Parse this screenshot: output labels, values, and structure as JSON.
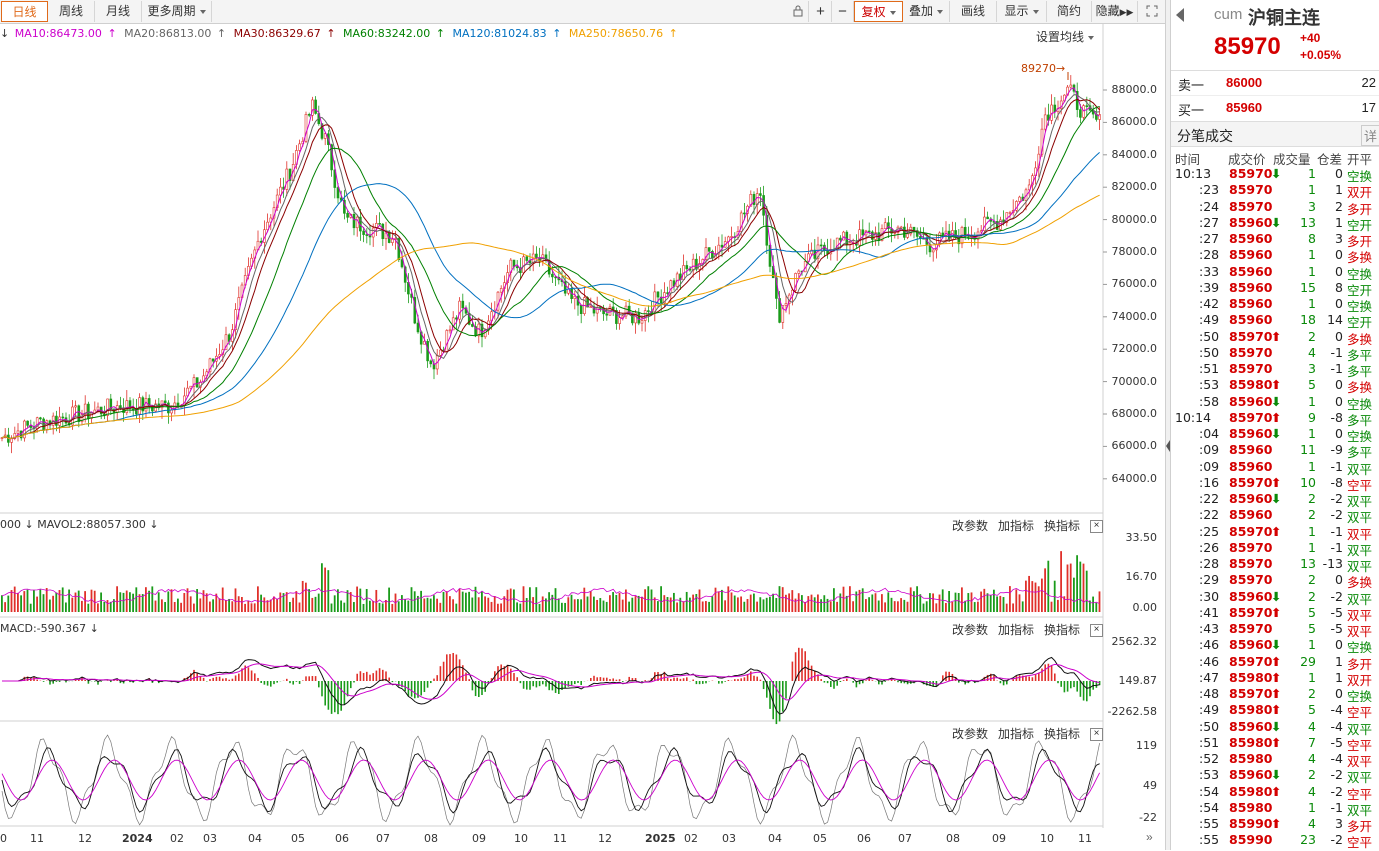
{
  "toolbar": {
    "tabs": [
      "日线",
      "周线",
      "月线",
      "更多周期"
    ],
    "actions": [
      "复权",
      "叠加",
      "画线",
      "显示",
      "简约",
      "隐藏"
    ],
    "ma_settings": "设置均线"
  },
  "ma_legend": [
    {
      "label": "MA10:86473.00",
      "color": "#cc00cc",
      "arrow": "↑"
    },
    {
      "label": "MA20:86813.00",
      "color": "#666666",
      "arrow": "↑"
    },
    {
      "label": "MA30:86329.67",
      "color": "#8b0000",
      "arrow": "↑"
    },
    {
      "label": "MA60:83242.00",
      "color": "#008000",
      "arrow": "↑"
    },
    {
      "label": "MA120:81024.83",
      "color": "#0070c0",
      "arrow": "↑"
    },
    {
      "label": "MA250:78650.76",
      "color": "#f0a000",
      "arrow": "↑"
    }
  ],
  "price_axis": [
    "88000.0",
    "86000.0",
    "84000.0",
    "82000.0",
    "80000.0",
    "78000.0",
    "76000.0",
    "74000.0",
    "72000.0",
    "70000.0",
    "68000.0",
    "66000.0",
    "64000.0"
  ],
  "peak_label": "89270",
  "volume_pane": {
    "title": "000 ↓ MAVOL2:88057.300 ↓",
    "axis": [
      "33.50",
      "16.70",
      "0.00"
    ]
  },
  "macd_pane": {
    "title": "MACD:-590.367 ↓",
    "axis": [
      "2562.32",
      "149.87",
      "-2262.58"
    ]
  },
  "kdj_pane": {
    "axis": [
      "119",
      "49",
      "-22"
    ]
  },
  "pane_buttons": [
    "改参数",
    "加指标",
    "换指标"
  ],
  "date_axis": [
    "0",
    "11",
    "12",
    "2024",
    "02",
    "03",
    "04",
    "05",
    "06",
    "07",
    "08",
    "09",
    "10",
    "11",
    "12",
    "2025",
    "02",
    "03",
    "04",
    "05",
    "06",
    "07",
    "08",
    "09",
    "10",
    "11"
  ],
  "quote": {
    "prefix": "cum",
    "name": "沪铜主连",
    "price": "85970",
    "change": "+40",
    "change_pct": "+0.05%",
    "ask_label": "卖一",
    "ask_price": "86000",
    "ask_vol": "22",
    "bid_label": "买一",
    "bid_price": "85960",
    "bid_vol": "17"
  },
  "trades_section": {
    "title": "分笔成交",
    "detail": "详",
    "headers": [
      "时间",
      "成交价",
      "成交量",
      "仓差",
      "开平"
    ]
  },
  "trades": [
    {
      "t": "10:13",
      "p": "85970",
      "dir": "down",
      "v": "1",
      "d": "0",
      "k": "空换",
      "kc": "green"
    },
    {
      "t": ":23",
      "p": "85970",
      "dir": "",
      "v": "1",
      "d": "1",
      "k": "双开",
      "kc": "red"
    },
    {
      "t": ":24",
      "p": "85970",
      "dir": "",
      "v": "3",
      "d": "2",
      "k": "多开",
      "kc": "red"
    },
    {
      "t": ":27",
      "p": "85960",
      "dir": "down",
      "v": "13",
      "d": "1",
      "k": "空开",
      "kc": "green"
    },
    {
      "t": ":27",
      "p": "85960",
      "dir": "",
      "v": "8",
      "d": "3",
      "k": "多开",
      "kc": "red"
    },
    {
      "t": ":28",
      "p": "85960",
      "dir": "",
      "v": "1",
      "d": "0",
      "k": "多换",
      "kc": "red"
    },
    {
      "t": ":33",
      "p": "85960",
      "dir": "",
      "v": "1",
      "d": "0",
      "k": "空换",
      "kc": "green"
    },
    {
      "t": ":39",
      "p": "85960",
      "dir": "",
      "v": "15",
      "d": "8",
      "k": "空开",
      "kc": "green"
    },
    {
      "t": ":42",
      "p": "85960",
      "dir": "",
      "v": "1",
      "d": "0",
      "k": "空换",
      "kc": "green"
    },
    {
      "t": ":49",
      "p": "85960",
      "dir": "",
      "v": "18",
      "d": "14",
      "k": "空开",
      "kc": "green"
    },
    {
      "t": ":50",
      "p": "85970",
      "dir": "up",
      "v": "2",
      "d": "0",
      "k": "多换",
      "kc": "red"
    },
    {
      "t": ":50",
      "p": "85970",
      "dir": "",
      "v": "4",
      "d": "-1",
      "k": "多平",
      "kc": "green"
    },
    {
      "t": ":51",
      "p": "85970",
      "dir": "",
      "v": "3",
      "d": "-1",
      "k": "多平",
      "kc": "green"
    },
    {
      "t": ":53",
      "p": "85980",
      "dir": "up",
      "v": "5",
      "d": "0",
      "k": "多换",
      "kc": "red"
    },
    {
      "t": ":58",
      "p": "85960",
      "dir": "down",
      "v": "1",
      "d": "0",
      "k": "空换",
      "kc": "green"
    },
    {
      "t": "10:14",
      "p": "85970",
      "dir": "up",
      "v": "9",
      "d": "-8",
      "k": "多平",
      "kc": "green"
    },
    {
      "t": ":04",
      "p": "85960",
      "dir": "down",
      "v": "1",
      "d": "0",
      "k": "空换",
      "kc": "green"
    },
    {
      "t": ":09",
      "p": "85960",
      "dir": "",
      "v": "11",
      "d": "-9",
      "k": "多平",
      "kc": "green"
    },
    {
      "t": ":09",
      "p": "85960",
      "dir": "",
      "v": "1",
      "d": "-1",
      "k": "双平",
      "kc": "green"
    },
    {
      "t": ":16",
      "p": "85970",
      "dir": "up",
      "v": "10",
      "d": "-8",
      "k": "空平",
      "kc": "red"
    },
    {
      "t": ":22",
      "p": "85960",
      "dir": "down",
      "v": "2",
      "d": "-2",
      "k": "双平",
      "kc": "green"
    },
    {
      "t": ":22",
      "p": "85960",
      "dir": "",
      "v": "2",
      "d": "-2",
      "k": "双平",
      "kc": "green"
    },
    {
      "t": ":25",
      "p": "85970",
      "dir": "up",
      "v": "1",
      "d": "-1",
      "k": "双平",
      "kc": "red"
    },
    {
      "t": ":26",
      "p": "85970",
      "dir": "",
      "v": "1",
      "d": "-1",
      "k": "双平",
      "kc": "green"
    },
    {
      "t": ":28",
      "p": "85970",
      "dir": "",
      "v": "13",
      "d": "-13",
      "k": "双平",
      "kc": "green"
    },
    {
      "t": ":29",
      "p": "85970",
      "dir": "",
      "v": "2",
      "d": "0",
      "k": "多换",
      "kc": "red"
    },
    {
      "t": ":30",
      "p": "85960",
      "dir": "down",
      "v": "2",
      "d": "-2",
      "k": "双平",
      "kc": "green"
    },
    {
      "t": ":41",
      "p": "85970",
      "dir": "up",
      "v": "5",
      "d": "-5",
      "k": "双平",
      "kc": "red"
    },
    {
      "t": ":43",
      "p": "85970",
      "dir": "",
      "v": "5",
      "d": "-5",
      "k": "双平",
      "kc": "red"
    },
    {
      "t": ":46",
      "p": "85960",
      "dir": "down",
      "v": "1",
      "d": "0",
      "k": "空换",
      "kc": "green"
    },
    {
      "t": ":46",
      "p": "85970",
      "dir": "up",
      "v": "29",
      "d": "1",
      "k": "多开",
      "kc": "red"
    },
    {
      "t": ":47",
      "p": "85980",
      "dir": "up",
      "v": "1",
      "d": "1",
      "k": "双开",
      "kc": "red"
    },
    {
      "t": ":48",
      "p": "85970",
      "dir": "up",
      "v": "2",
      "d": "0",
      "k": "空换",
      "kc": "green"
    },
    {
      "t": ":49",
      "p": "85980",
      "dir": "up",
      "v": "5",
      "d": "-4",
      "k": "空平",
      "kc": "red"
    },
    {
      "t": ":50",
      "p": "85960",
      "dir": "down",
      "v": "4",
      "d": "-4",
      "k": "双平",
      "kc": "green"
    },
    {
      "t": ":51",
      "p": "85980",
      "dir": "up",
      "v": "7",
      "d": "-5",
      "k": "空平",
      "kc": "red"
    },
    {
      "t": ":52",
      "p": "85980",
      "dir": "",
      "v": "4",
      "d": "-4",
      "k": "双平",
      "kc": "red"
    },
    {
      "t": ":53",
      "p": "85960",
      "dir": "down",
      "v": "2",
      "d": "-2",
      "k": "双平",
      "kc": "green"
    },
    {
      "t": ":54",
      "p": "85980",
      "dir": "up",
      "v": "4",
      "d": "-2",
      "k": "空平",
      "kc": "red"
    },
    {
      "t": ":54",
      "p": "85980",
      "dir": "",
      "v": "1",
      "d": "-1",
      "k": "双平",
      "kc": "green"
    },
    {
      "t": ":55",
      "p": "85990",
      "dir": "up",
      "v": "4",
      "d": "3",
      "k": "多开",
      "kc": "red"
    },
    {
      "t": ":55",
      "p": "85990",
      "dir": "",
      "v": "23",
      "d": "-2",
      "k": "空平",
      "kc": "red"
    }
  ]
}
